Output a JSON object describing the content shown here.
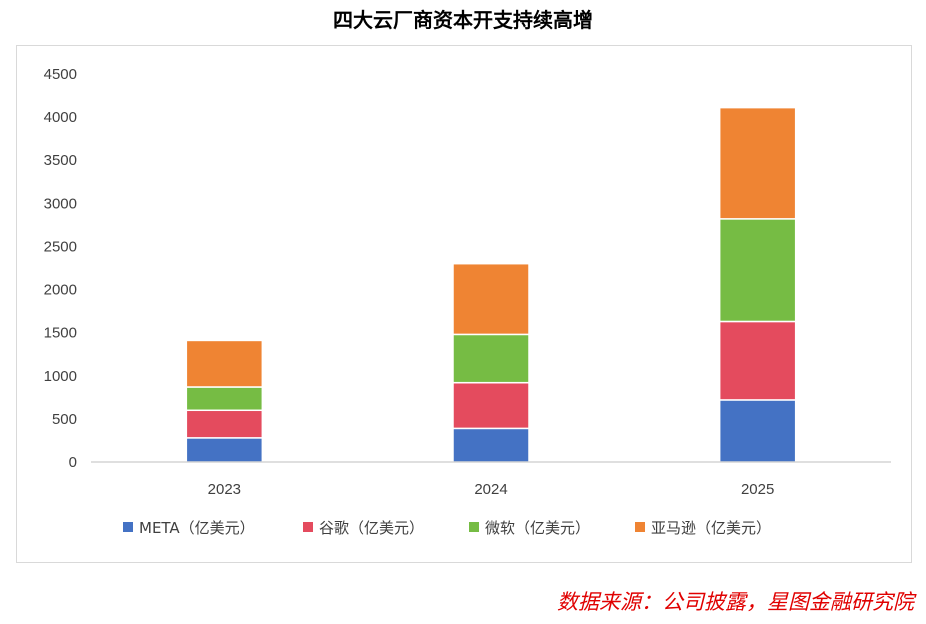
{
  "title": "四大云厂商资本开支持续高增",
  "source_note": "数据来源：公司披露，星图金融研究院",
  "colors": {
    "meta": "#4472c4",
    "google": "#e44b5e",
    "microsoft": "#76bc44",
    "amazon": "#ef8433",
    "axis": "#bfbfbf",
    "text": "#404040"
  },
  "chart_data": {
    "type": "bar",
    "stacked": true,
    "categories": [
      "2023",
      "2024",
      "2025"
    ],
    "series": [
      {
        "name": "META（亿美元）",
        "values": [
          280,
          390,
          720
        ],
        "color": "#4472c4"
      },
      {
        "name": "谷歌（亿美元）",
        "values": [
          320,
          530,
          910
        ],
        "color": "#e44b5e"
      },
      {
        "name": "微软（亿美元）",
        "values": [
          270,
          560,
          1190
        ],
        "color": "#76bc44"
      },
      {
        "name": "亚马逊（亿美元）",
        "values": [
          540,
          820,
          1290
        ],
        "color": "#ef8433"
      }
    ],
    "ylim": [
      0,
      4500
    ],
    "yticks": [
      0,
      500,
      1000,
      1500,
      2000,
      2500,
      3000,
      3500,
      4000,
      4500
    ],
    "grid": false,
    "legend_position": "bottom"
  }
}
